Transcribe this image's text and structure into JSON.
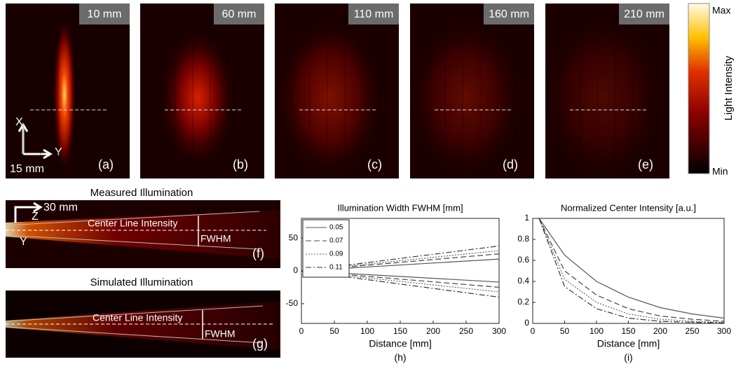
{
  "panels": [
    {
      "label": "10 mm",
      "tag": "(a)"
    },
    {
      "label": "60 mm",
      "tag": "(b)"
    },
    {
      "label": "110 mm",
      "tag": "(c)"
    },
    {
      "label": "160 mm",
      "tag": "(d)"
    },
    {
      "label": "210 mm",
      "tag": "(e)"
    }
  ],
  "axes_a": {
    "x": "X",
    "y": "Y",
    "scale": "15 mm"
  },
  "colorbar": {
    "max": "Max",
    "min": "Min",
    "label": "Light Intensity"
  },
  "measured": {
    "title": "Measured Illumination",
    "z": "Z",
    "scale": "30 mm",
    "y": "Y",
    "center": "Center Line Intensity",
    "fwhm": "FWHM",
    "tag": "(f)"
  },
  "simulated": {
    "title": "Simulated Illumination",
    "center": "Center Line Intensity",
    "fwhm": "FWHM",
    "tag": "(g)"
  },
  "chart_data": [
    {
      "type": "line",
      "title": "Illumination Width FWHM [mm]",
      "xlabel": "Distance [mm]",
      "tag": "(h)",
      "x": [
        0,
        300
      ],
      "series": [
        {
          "name": "0.05",
          "color": "#555555",
          "style": "solid",
          "values": [
            0,
            18
          ],
          "lower": [
            0,
            -17
          ]
        },
        {
          "name": "0.07",
          "color": "#444444",
          "style": "dashed",
          "values": [
            0,
            26
          ],
          "lower": [
            0,
            -25
          ]
        },
        {
          "name": "0.09",
          "color": "#666666",
          "style": "dotted",
          "values": [
            0,
            31
          ],
          "lower": [
            0,
            -32
          ]
        },
        {
          "name": "0.11",
          "color": "#333333",
          "style": "dashdot",
          "values": [
            0,
            38
          ],
          "lower": [
            0,
            -40
          ]
        }
      ],
      "xlim": [
        0,
        300
      ],
      "xticks": [
        0,
        50,
        100,
        150,
        200,
        250,
        300
      ],
      "ylim": [
        -80,
        80
      ],
      "yticks": [
        -50,
        0,
        50
      ],
      "legend": "upper-left"
    },
    {
      "type": "line",
      "title": "Normalized Center Intensity [a.u.]",
      "xlabel": "Distance [mm]",
      "tag": "(i)",
      "x": [
        10,
        50,
        100,
        150,
        200,
        250,
        300
      ],
      "series": [
        {
          "color": "#555555",
          "style": "solid",
          "values": [
            1,
            0.65,
            0.4,
            0.25,
            0.15,
            0.09,
            0.05
          ]
        },
        {
          "color": "#444444",
          "style": "dashed",
          "values": [
            1,
            0.5,
            0.27,
            0.14,
            0.07,
            0.04,
            0.02
          ]
        },
        {
          "color": "#666666",
          "style": "dotted",
          "values": [
            1,
            0.42,
            0.2,
            0.09,
            0.04,
            0.02,
            0.01
          ]
        },
        {
          "color": "#333333",
          "style": "dashdot",
          "values": [
            1,
            0.35,
            0.14,
            0.05,
            0.02,
            0.01,
            0.005
          ]
        }
      ],
      "xlim": [
        0,
        300
      ],
      "xticks": [
        0,
        50,
        100,
        150,
        200,
        250,
        300
      ],
      "ylim": [
        0,
        1
      ],
      "yticks": [
        0,
        0.2,
        0.4,
        0.6,
        0.8,
        1
      ]
    }
  ]
}
